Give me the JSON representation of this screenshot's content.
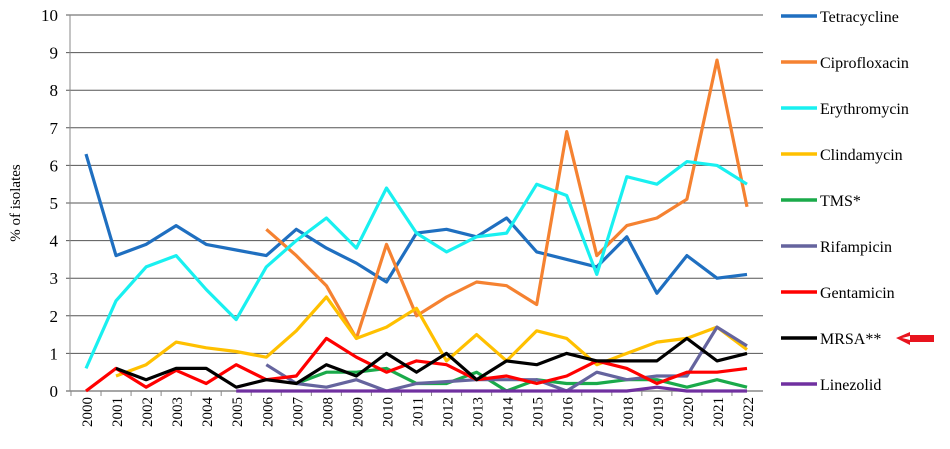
{
  "chart_data": {
    "type": "line",
    "title": "",
    "xlabel": "",
    "ylabel": "% of isolates",
    "ylim": [
      0,
      10
    ],
    "yticks": [
      0,
      1,
      2,
      3,
      4,
      5,
      6,
      7,
      8,
      9,
      10
    ],
    "grid": true,
    "legend_placement": "right",
    "x": [
      "2000",
      "2001",
      "2002",
      "2003",
      "2004",
      "2005",
      "2006",
      "2007",
      "2008",
      "2009",
      "2010",
      "2011",
      "2012",
      "2013",
      "2014",
      "2015",
      "2016",
      "2017",
      "2018",
      "2019",
      "2020",
      "2021",
      "2022"
    ],
    "series": [
      {
        "name": "Tetracycline",
        "color": "#1f6fc0",
        "values": [
          6.3,
          3.6,
          3.9,
          4.4,
          3.9,
          3.75,
          3.6,
          4.3,
          3.8,
          3.4,
          2.9,
          4.2,
          4.3,
          4.1,
          4.6,
          3.7,
          3.5,
          3.3,
          4.1,
          2.6,
          3.6,
          3.0,
          3.1
        ]
      },
      {
        "name": "Ciprofloxacin",
        "color": "#f58231",
        "values": [
          null,
          null,
          null,
          null,
          null,
          null,
          4.3,
          3.6,
          2.8,
          1.4,
          3.9,
          2.0,
          2.5,
          2.9,
          2.8,
          2.3,
          6.9,
          3.6,
          4.4,
          4.6,
          5.1,
          8.8,
          4.9
        ]
      },
      {
        "name": "Erythromycin",
        "color": "#19f0f0",
        "values": [
          0.6,
          2.4,
          3.3,
          3.6,
          2.7,
          1.9,
          3.3,
          4.0,
          4.6,
          3.8,
          5.4,
          4.2,
          3.7,
          4.1,
          4.2,
          5.5,
          5.2,
          3.1,
          5.7,
          5.5,
          6.1,
          6.0,
          5.5
        ]
      },
      {
        "name": "Clindamycin",
        "color": "#ffc000",
        "values": [
          null,
          0.4,
          0.7,
          1.3,
          1.15,
          1.05,
          0.9,
          1.6,
          2.5,
          1.4,
          1.7,
          2.2,
          0.8,
          1.5,
          0.8,
          1.6,
          1.4,
          0.7,
          1.0,
          1.3,
          1.4,
          1.7,
          1.1
        ]
      },
      {
        "name": "TMS*",
        "color": "#1aaa4a",
        "values": [
          null,
          null,
          null,
          null,
          null,
          null,
          null,
          0.2,
          0.5,
          0.5,
          0.6,
          0.2,
          0.2,
          0.5,
          0.0,
          0.3,
          0.2,
          0.2,
          0.3,
          0.3,
          0.1,
          0.3,
          0.1
        ]
      },
      {
        "name": "Rifampicin",
        "color": "#65649e",
        "values": [
          null,
          null,
          null,
          null,
          null,
          null,
          0.7,
          0.2,
          0.1,
          0.3,
          0.0,
          0.2,
          0.25,
          0.3,
          0.3,
          0.3,
          0.0,
          0.5,
          0.3,
          0.4,
          0.4,
          1.7,
          1.2
        ]
      },
      {
        "name": "Gentamicin",
        "color": "#ff0000",
        "values": [
          0.0,
          0.6,
          0.1,
          0.55,
          0.2,
          0.7,
          0.3,
          0.4,
          1.4,
          0.9,
          0.5,
          0.8,
          0.7,
          0.3,
          0.4,
          0.2,
          0.4,
          0.8,
          0.6,
          0.2,
          0.5,
          0.5,
          0.6
        ]
      },
      {
        "name": "MRSA**",
        "color": "#000000",
        "values": [
          null,
          0.6,
          0.3,
          0.6,
          0.6,
          0.1,
          0.3,
          0.2,
          0.7,
          0.4,
          1.0,
          0.5,
          1.0,
          0.3,
          0.8,
          0.7,
          1.0,
          0.8,
          0.8,
          0.8,
          1.4,
          0.8,
          1.0
        ]
      },
      {
        "name": "Linezolid",
        "color": "#7030a0",
        "values": [
          null,
          null,
          null,
          null,
          null,
          0,
          0,
          0,
          0,
          0,
          0,
          0,
          0,
          0,
          0,
          0,
          0,
          0,
          0,
          0.1,
          0,
          0,
          0
        ]
      }
    ],
    "annotations": [
      {
        "type": "arrow",
        "target": "MRSA**",
        "color": "#e8141e",
        "direction": "left"
      }
    ]
  }
}
